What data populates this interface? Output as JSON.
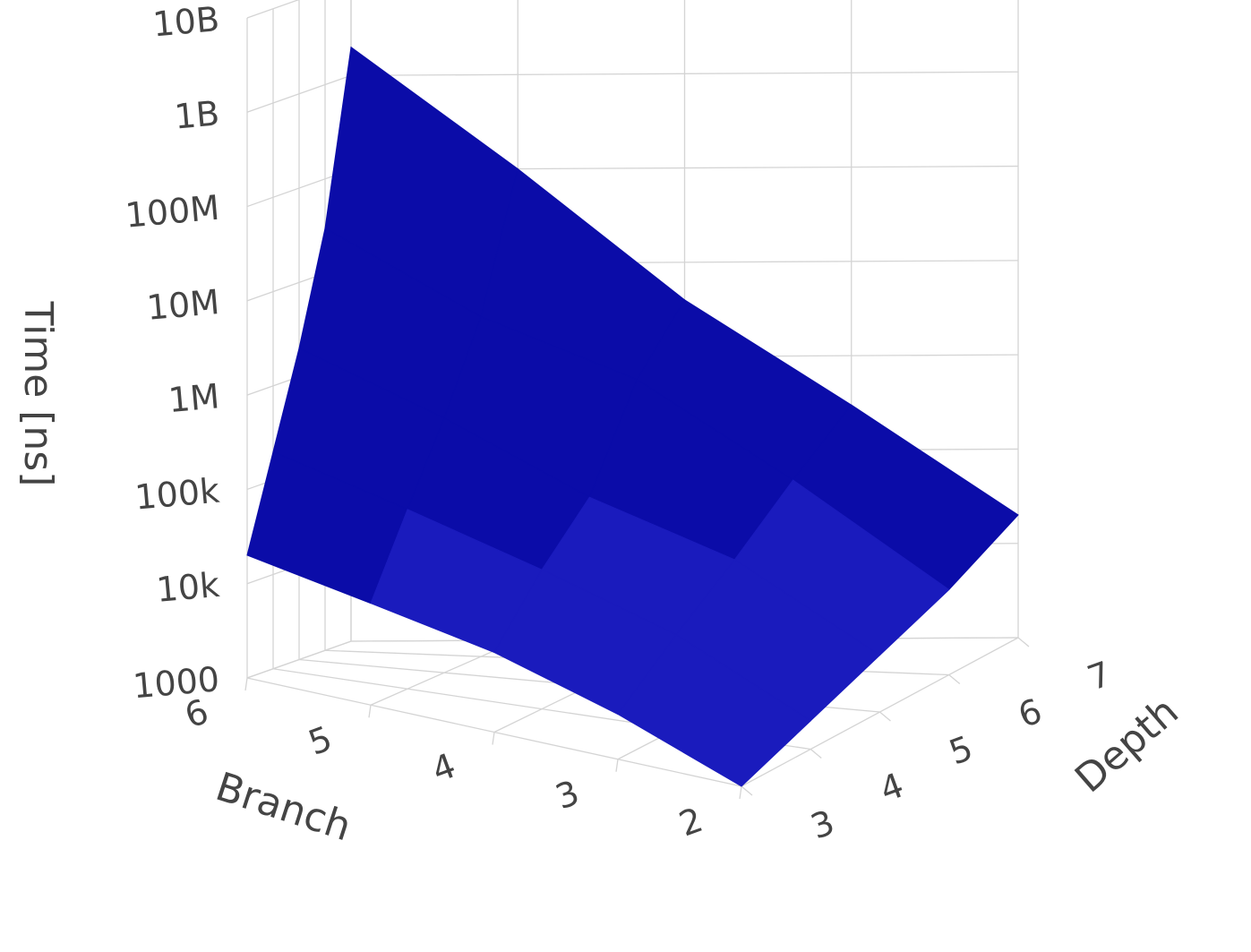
{
  "chart_data": {
    "type": "surface",
    "title": "",
    "x_axis": {
      "label": "Branch",
      "ticks": [
        "2",
        "3",
        "4",
        "5",
        "6"
      ],
      "range": [
        2,
        6
      ]
    },
    "y_axis": {
      "label": "Depth",
      "ticks": [
        "3",
        "4",
        "5",
        "6",
        "7"
      ],
      "range": [
        3,
        7
      ]
    },
    "z_axis": {
      "label": "Time [ns]",
      "scale": "log",
      "ticks": [
        "1000",
        "10k",
        "100k",
        "1M",
        "10M",
        "100M",
        "1B",
        "10B"
      ],
      "range": [
        1000,
        10000000000
      ]
    },
    "surface": {
      "branch": [
        2,
        3,
        4,
        5,
        6
      ],
      "depth": [
        3,
        4,
        5,
        6,
        7
      ],
      "time_ns": [
        [
          1000,
          2000,
          4000,
          8000,
          20000
        ],
        [
          3000,
          10000,
          30000,
          100000,
          300000
        ],
        [
          7000,
          30000,
          100000,
          1000000,
          4000000
        ],
        [
          12000,
          80000,
          500000,
          4000000,
          100000000
        ],
        [
          20000,
          200000,
          2000000,
          30000000,
          2000000000
        ]
      ]
    },
    "colorscale": [
      "#0b0ca8",
      "#1a1bbd"
    ],
    "grid": true,
    "legend": "none"
  }
}
